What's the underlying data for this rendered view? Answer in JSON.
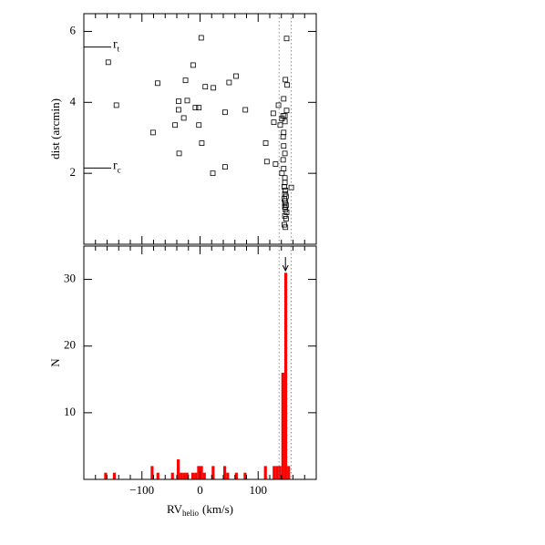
{
  "chart_data": [
    {
      "type": "scatter",
      "ylabel": "dist (arcmin)",
      "x": [
        -158,
        -144,
        -81,
        -73,
        -43,
        -37,
        -37,
        -36,
        -28,
        -25,
        -22,
        -12,
        -8,
        -2,
        -2,
        2,
        3,
        9,
        22,
        23,
        43,
        43,
        50,
        62,
        78,
        113,
        115,
        126,
        127,
        135,
        130,
        149,
        147,
        150,
        144,
        143,
        146,
        141,
        146,
        138,
        149,
        144,
        143,
        144,
        146,
        143,
        144,
        141,
        146,
        146,
        145,
        147,
        146,
        148,
        145,
        147,
        146,
        148,
        146,
        147,
        149,
        146,
        148,
        145,
        147,
        157
      ],
      "y": [
        5.13,
        3.92,
        3.15,
        4.54,
        3.36,
        4.03,
        3.79,
        2.56,
        3.56,
        4.62,
        4.05,
        5.05,
        3.85,
        3.85,
        3.36,
        5.82,
        2.85,
        4.44,
        2.0,
        4.41,
        3.72,
        2.18,
        4.56,
        4.74,
        3.79,
        2.85,
        2.33,
        3.69,
        3.44,
        3.92,
        2.26,
        5.8,
        4.64,
        4.49,
        4.1,
        3.62,
        3.62,
        3.54,
        3.46,
        3.36,
        3.77,
        3.15,
        3.03,
        2.77,
        2.56,
        2.38,
        2.13,
        2.0,
        1.87,
        1.74,
        1.62,
        1.52,
        1.42,
        1.35,
        1.28,
        1.22,
        1.15,
        1.1,
        1.05,
        0.98,
        0.9,
        0.8,
        0.72,
        0.55,
        0.48,
        1.6
      ],
      "color": "#000000",
      "xlim": [
        -200,
        200
      ],
      "ylim": [
        0,
        6.5
      ],
      "xticks": [
        -100,
        0,
        100
      ],
      "xminor": [
        -180,
        -160,
        -140,
        -120,
        -80,
        -60,
        -40,
        -20,
        20,
        40,
        60,
        80,
        120,
        140,
        160,
        180
      ],
      "yticks": [
        2,
        4,
        6
      ],
      "vlines": [
        136,
        157
      ],
      "annotations": [
        {
          "text": "r",
          "sub": "t",
          "value": 5.56
        },
        {
          "text": "r",
          "sub": "c",
          "value": 2.15
        }
      ]
    },
    {
      "type": "histogram",
      "ylabel": "N",
      "xlabel": "RV",
      "xlabel_sub": "helio",
      "xlabel_unit": "(km/s)",
      "bins": [
        -200,
        -195,
        -190,
        -185,
        -180,
        -175,
        -170,
        -165,
        -160,
        -155,
        -150,
        -145,
        -140,
        -135,
        -130,
        -125,
        -120,
        -115,
        -110,
        -105,
        -100,
        -95,
        -90,
        -85,
        -80,
        -75,
        -70,
        -65,
        -60,
        -55,
        -50,
        -45,
        -40,
        -35,
        -30,
        -25,
        -20,
        -15,
        -10,
        -5,
        0,
        5,
        10,
        15,
        20,
        25,
        30,
        35,
        40,
        45,
        50,
        55,
        60,
        65,
        70,
        75,
        80,
        85,
        90,
        95,
        100,
        105,
        110,
        115,
        120,
        125,
        130,
        135,
        140,
        145,
        150,
        155,
        160,
        165,
        170,
        175,
        180,
        185,
        190,
        195,
        200
      ],
      "values": [
        0,
        0,
        0,
        0,
        0,
        0,
        0,
        1,
        0,
        0,
        1,
        0,
        0,
        0,
        0,
        0,
        0,
        0,
        0,
        0,
        0,
        0,
        0,
        2,
        0,
        1,
        0,
        0,
        0,
        0,
        1,
        0,
        3,
        1,
        1,
        1,
        0,
        1,
        1,
        2,
        2,
        1,
        0,
        0,
        2,
        0,
        0,
        0,
        2,
        1,
        0,
        0,
        1,
        0,
        0,
        1,
        0,
        0,
        0,
        0,
        0,
        0,
        2,
        0,
        0,
        2,
        2,
        2,
        16,
        31,
        2,
        0,
        0,
        0,
        0,
        0,
        0,
        0,
        0,
        0
      ],
      "color": "#ff0000",
      "xlim": [
        -200,
        200
      ],
      "ylim": [
        0,
        35
      ],
      "xticks": [
        {
          "value": -100,
          "label": "−100"
        },
        0,
        100
      ],
      "xminor": [
        -180,
        -160,
        -140,
        -120,
        -80,
        -60,
        -40,
        -20,
        20,
        40,
        60,
        80,
        120,
        140,
        160,
        180
      ],
      "yticks": [
        10,
        20,
        30
      ],
      "vlines": [
        136,
        157
      ],
      "arrow": 147
    }
  ]
}
